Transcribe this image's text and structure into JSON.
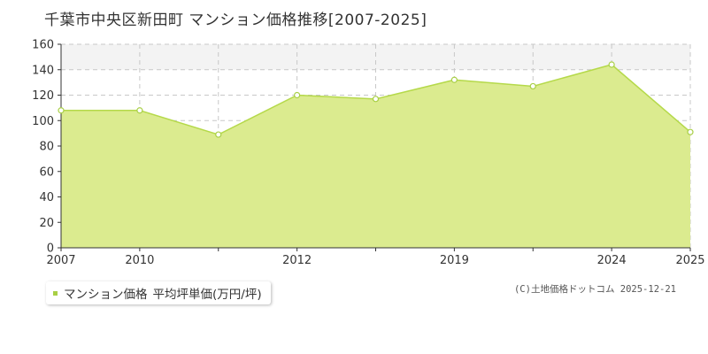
{
  "page": {
    "title": "千葉市中央区新田町 マンション価格推移[2007-2025]",
    "copyright": "(C)土地価格ドットコム 2025-12-21"
  },
  "legend": {
    "marker_icon": "square-marker-icon",
    "series_label": "マンション価格",
    "unit_label": "平均坪単価(万円/坪)"
  },
  "colors": {
    "fill": "#dbeb8f",
    "line": "#b5d94a",
    "marker": "#a8cf45",
    "grid": "#c8c8c8",
    "band": "#f3f3f3"
  },
  "chart_data": {
    "type": "area",
    "title": "千葉市中央区新田町 マンション価格推移[2007-2025]",
    "ylabel": "平均坪単価(万円/坪)",
    "xlabel": "",
    "ylim": [
      0,
      160
    ],
    "yticks": [
      0,
      20,
      40,
      60,
      80,
      100,
      120,
      140,
      160
    ],
    "x_tick_labels": [
      "2007",
      "2010",
      "",
      "2012",
      "",
      "2019",
      "",
      "2024",
      "2025"
    ],
    "grid": true,
    "legend_position": "bottom-left",
    "series": [
      {
        "name": "マンション価格",
        "x": [
          0,
          1,
          2,
          3,
          4,
          5,
          6,
          7,
          8
        ],
        "values": [
          108,
          108,
          89,
          120,
          117,
          132,
          127,
          144,
          91
        ]
      }
    ]
  }
}
